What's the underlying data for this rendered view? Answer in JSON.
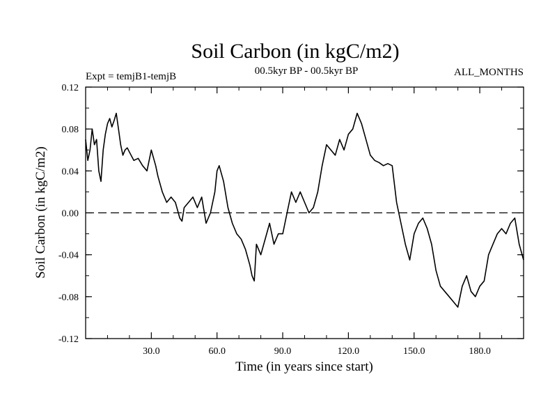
{
  "chart_data": {
    "type": "line",
    "title": "Soil Carbon (in kgC/m2)",
    "subtitle_left": "Expt = temjB1-temjB",
    "subtitle_center": "00.5kyr BP - 00.5kyr BP",
    "subtitle_right": "ALL_MONTHS",
    "xlabel": "Time (in years since start)",
    "ylabel": "Soil Carbon (in kgC/m2)",
    "xlim": [
      0,
      200
    ],
    "ylim": [
      -0.12,
      0.12
    ],
    "x_ticks": [
      30,
      60,
      90,
      120,
      150,
      180
    ],
    "x_tick_labels": [
      "30.0",
      "60.0",
      "90.0",
      "120.0",
      "150.0",
      "180.0"
    ],
    "y_ticks": [
      -0.12,
      -0.08,
      -0.04,
      0.0,
      0.04,
      0.08,
      0.12
    ],
    "y_tick_labels": [
      "-0.12",
      "-0.08",
      "-0.04",
      "0.00",
      "0.04",
      "0.08",
      "0.12"
    ],
    "reference_line": {
      "y": 0.0,
      "style": "dashed"
    },
    "series": [
      {
        "name": "temjB1-temjB",
        "x": [
          0,
          1,
          2,
          3,
          4,
          5,
          6,
          7,
          8,
          9,
          10,
          11,
          12,
          13,
          14,
          15,
          16,
          17,
          18,
          19,
          20,
          22,
          24,
          26,
          28,
          30,
          32,
          33,
          35,
          37,
          39,
          41,
          43,
          44,
          45,
          47,
          49,
          51,
          53,
          55,
          57,
          59,
          60,
          61,
          63,
          65,
          67,
          69,
          71,
          73,
          75,
          76,
          77,
          78,
          80,
          82,
          84,
          86,
          88,
          90,
          92,
          94,
          96,
          98,
          100,
          102,
          104,
          106,
          108,
          110,
          112,
          114,
          116,
          118,
          120,
          122,
          124,
          126,
          128,
          130,
          132,
          134,
          136,
          138,
          140,
          142,
          144,
          146,
          148,
          150,
          152,
          154,
          156,
          158,
          160,
          162,
          164,
          166,
          168,
          170,
          172,
          174,
          176,
          178,
          180,
          182,
          184,
          186,
          188,
          190,
          192,
          194,
          196,
          198,
          200
        ],
        "values": [
          0.07,
          0.05,
          0.06,
          0.08,
          0.065,
          0.07,
          0.04,
          0.03,
          0.06,
          0.075,
          0.085,
          0.09,
          0.082,
          0.088,
          0.095,
          0.08,
          0.065,
          0.055,
          0.06,
          0.062,
          0.058,
          0.05,
          0.052,
          0.045,
          0.04,
          0.06,
          0.045,
          0.035,
          0.02,
          0.01,
          0.015,
          0.01,
          -0.005,
          -0.008,
          0.005,
          0.01,
          0.015,
          0.005,
          0.015,
          -0.01,
          0.0,
          0.02,
          0.04,
          0.045,
          0.03,
          0.005,
          -0.01,
          -0.02,
          -0.025,
          -0.035,
          -0.05,
          -0.06,
          -0.065,
          -0.03,
          -0.04,
          -0.025,
          -0.01,
          -0.03,
          -0.02,
          -0.02,
          0.0,
          0.02,
          0.01,
          0.02,
          0.01,
          0.0,
          0.005,
          0.02,
          0.045,
          0.065,
          0.06,
          0.055,
          0.07,
          0.06,
          0.075,
          0.08,
          0.095,
          0.085,
          0.07,
          0.055,
          0.05,
          0.048,
          0.045,
          0.047,
          0.045,
          0.01,
          -0.01,
          -0.03,
          -0.045,
          -0.02,
          -0.01,
          -0.005,
          -0.015,
          -0.03,
          -0.055,
          -0.07,
          -0.075,
          -0.08,
          -0.085,
          -0.09,
          -0.07,
          -0.06,
          -0.075,
          -0.08,
          -0.07,
          -0.065,
          -0.04,
          -0.03,
          -0.02,
          -0.015,
          -0.02,
          -0.01,
          -0.005,
          -0.03,
          -0.045
        ]
      }
    ]
  }
}
